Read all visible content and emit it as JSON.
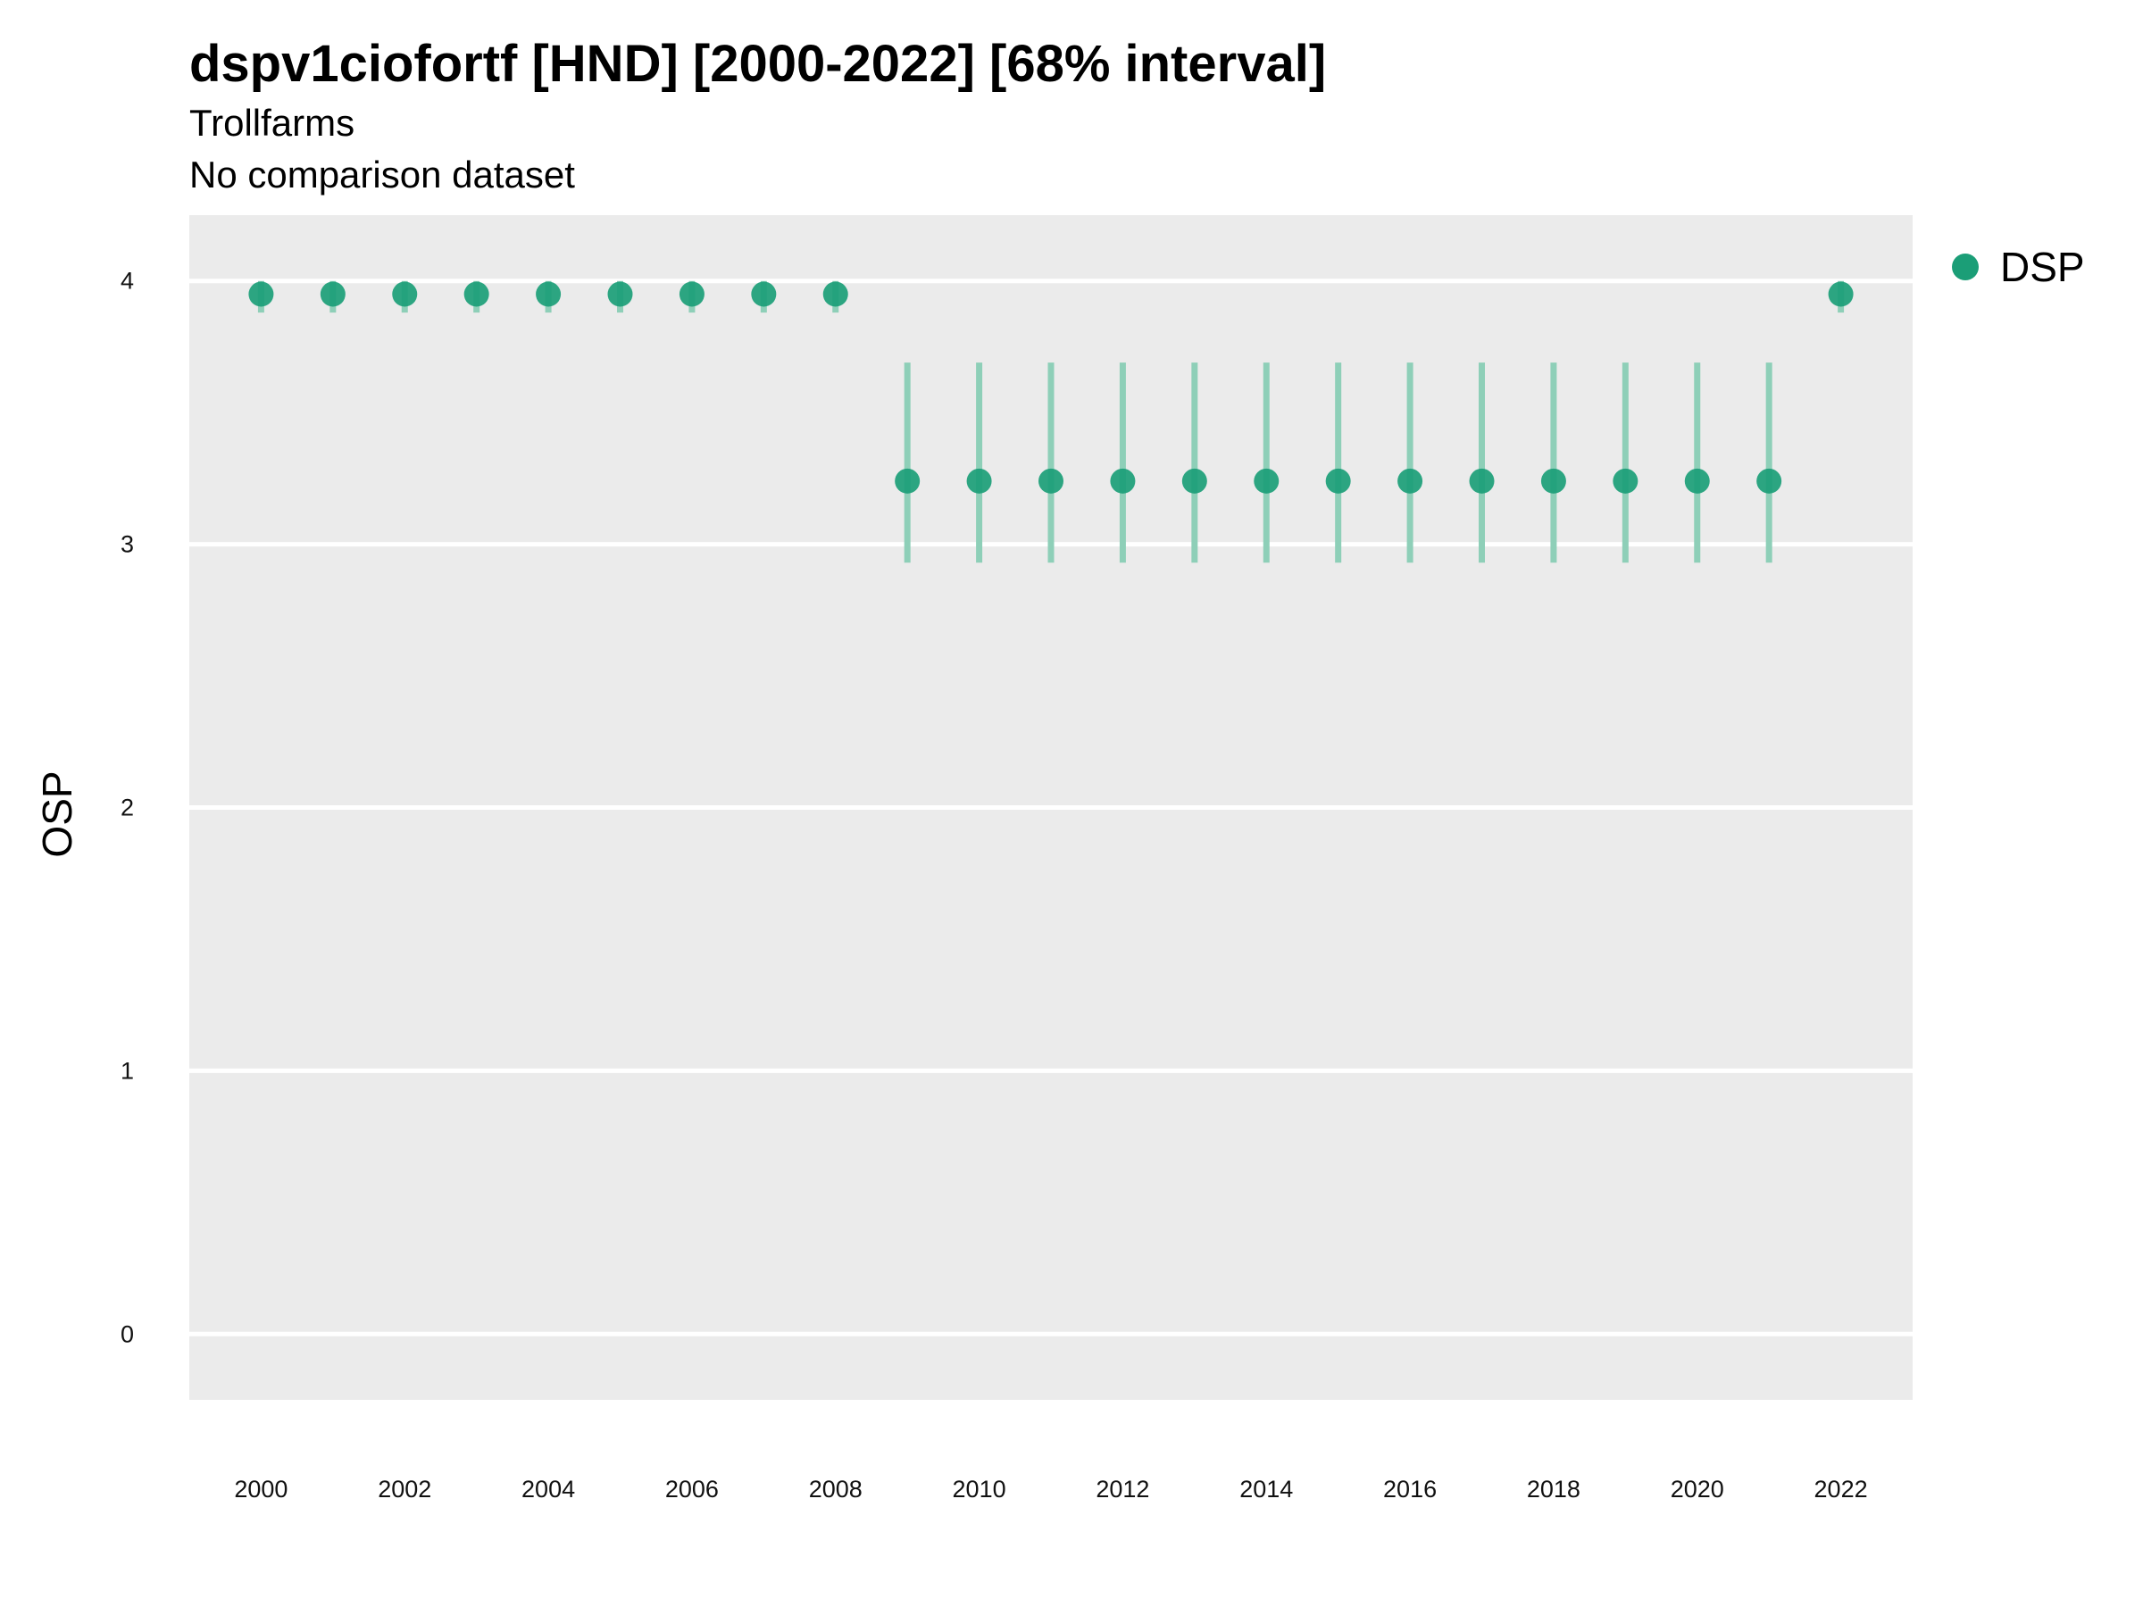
{
  "chart_data": {
    "type": "scatter",
    "title": "dspv1ciofortf [HND] [2000-2022] [68% interval]",
    "subtitle": "Trollfarms",
    "caption": "No comparison dataset",
    "xlabel": "",
    "ylabel": "OSP",
    "xlim": [
      1999,
      2023
    ],
    "ylim": [
      -0.25,
      4.25
    ],
    "x_ticks": [
      "2000",
      "2002",
      "2004",
      "2006",
      "2008",
      "2010",
      "2012",
      "2014",
      "2016",
      "2018",
      "2020",
      "2022"
    ],
    "y_ticks": [
      "0",
      "1",
      "2",
      "3",
      "4"
    ],
    "grid": true,
    "legend_position": "right",
    "colors": {
      "series": "#1b9e77",
      "interval": "#8ecfb8",
      "panel": "#ebebeb",
      "gridline": "#ffffff"
    },
    "series": [
      {
        "name": "DSP",
        "points": [
          {
            "x": 2000,
            "y": 3.95,
            "lo": 3.88,
            "hi": 4.0
          },
          {
            "x": 2001,
            "y": 3.95,
            "lo": 3.88,
            "hi": 4.0
          },
          {
            "x": 2002,
            "y": 3.95,
            "lo": 3.88,
            "hi": 4.0
          },
          {
            "x": 2003,
            "y": 3.95,
            "lo": 3.88,
            "hi": 4.0
          },
          {
            "x": 2004,
            "y": 3.95,
            "lo": 3.88,
            "hi": 4.0
          },
          {
            "x": 2005,
            "y": 3.95,
            "lo": 3.88,
            "hi": 4.0
          },
          {
            "x": 2006,
            "y": 3.95,
            "lo": 3.88,
            "hi": 4.0
          },
          {
            "x": 2007,
            "y": 3.95,
            "lo": 3.88,
            "hi": 4.0
          },
          {
            "x": 2008,
            "y": 3.95,
            "lo": 3.88,
            "hi": 4.0
          },
          {
            "x": 2009,
            "y": 3.24,
            "lo": 2.93,
            "hi": 3.69
          },
          {
            "x": 2010,
            "y": 3.24,
            "lo": 2.93,
            "hi": 3.69
          },
          {
            "x": 2011,
            "y": 3.24,
            "lo": 2.93,
            "hi": 3.69
          },
          {
            "x": 2012,
            "y": 3.24,
            "lo": 2.93,
            "hi": 3.69
          },
          {
            "x": 2013,
            "y": 3.24,
            "lo": 2.93,
            "hi": 3.69
          },
          {
            "x": 2014,
            "y": 3.24,
            "lo": 2.93,
            "hi": 3.69
          },
          {
            "x": 2015,
            "y": 3.24,
            "lo": 2.93,
            "hi": 3.69
          },
          {
            "x": 2016,
            "y": 3.24,
            "lo": 2.93,
            "hi": 3.69
          },
          {
            "x": 2017,
            "y": 3.24,
            "lo": 2.93,
            "hi": 3.69
          },
          {
            "x": 2018,
            "y": 3.24,
            "lo": 2.93,
            "hi": 3.69
          },
          {
            "x": 2019,
            "y": 3.24,
            "lo": 2.93,
            "hi": 3.69
          },
          {
            "x": 2020,
            "y": 3.24,
            "lo": 2.93,
            "hi": 3.69
          },
          {
            "x": 2021,
            "y": 3.24,
            "lo": 2.93,
            "hi": 3.69
          },
          {
            "x": 2022,
            "y": 3.95,
            "lo": 3.88,
            "hi": 4.0
          }
        ]
      }
    ]
  }
}
